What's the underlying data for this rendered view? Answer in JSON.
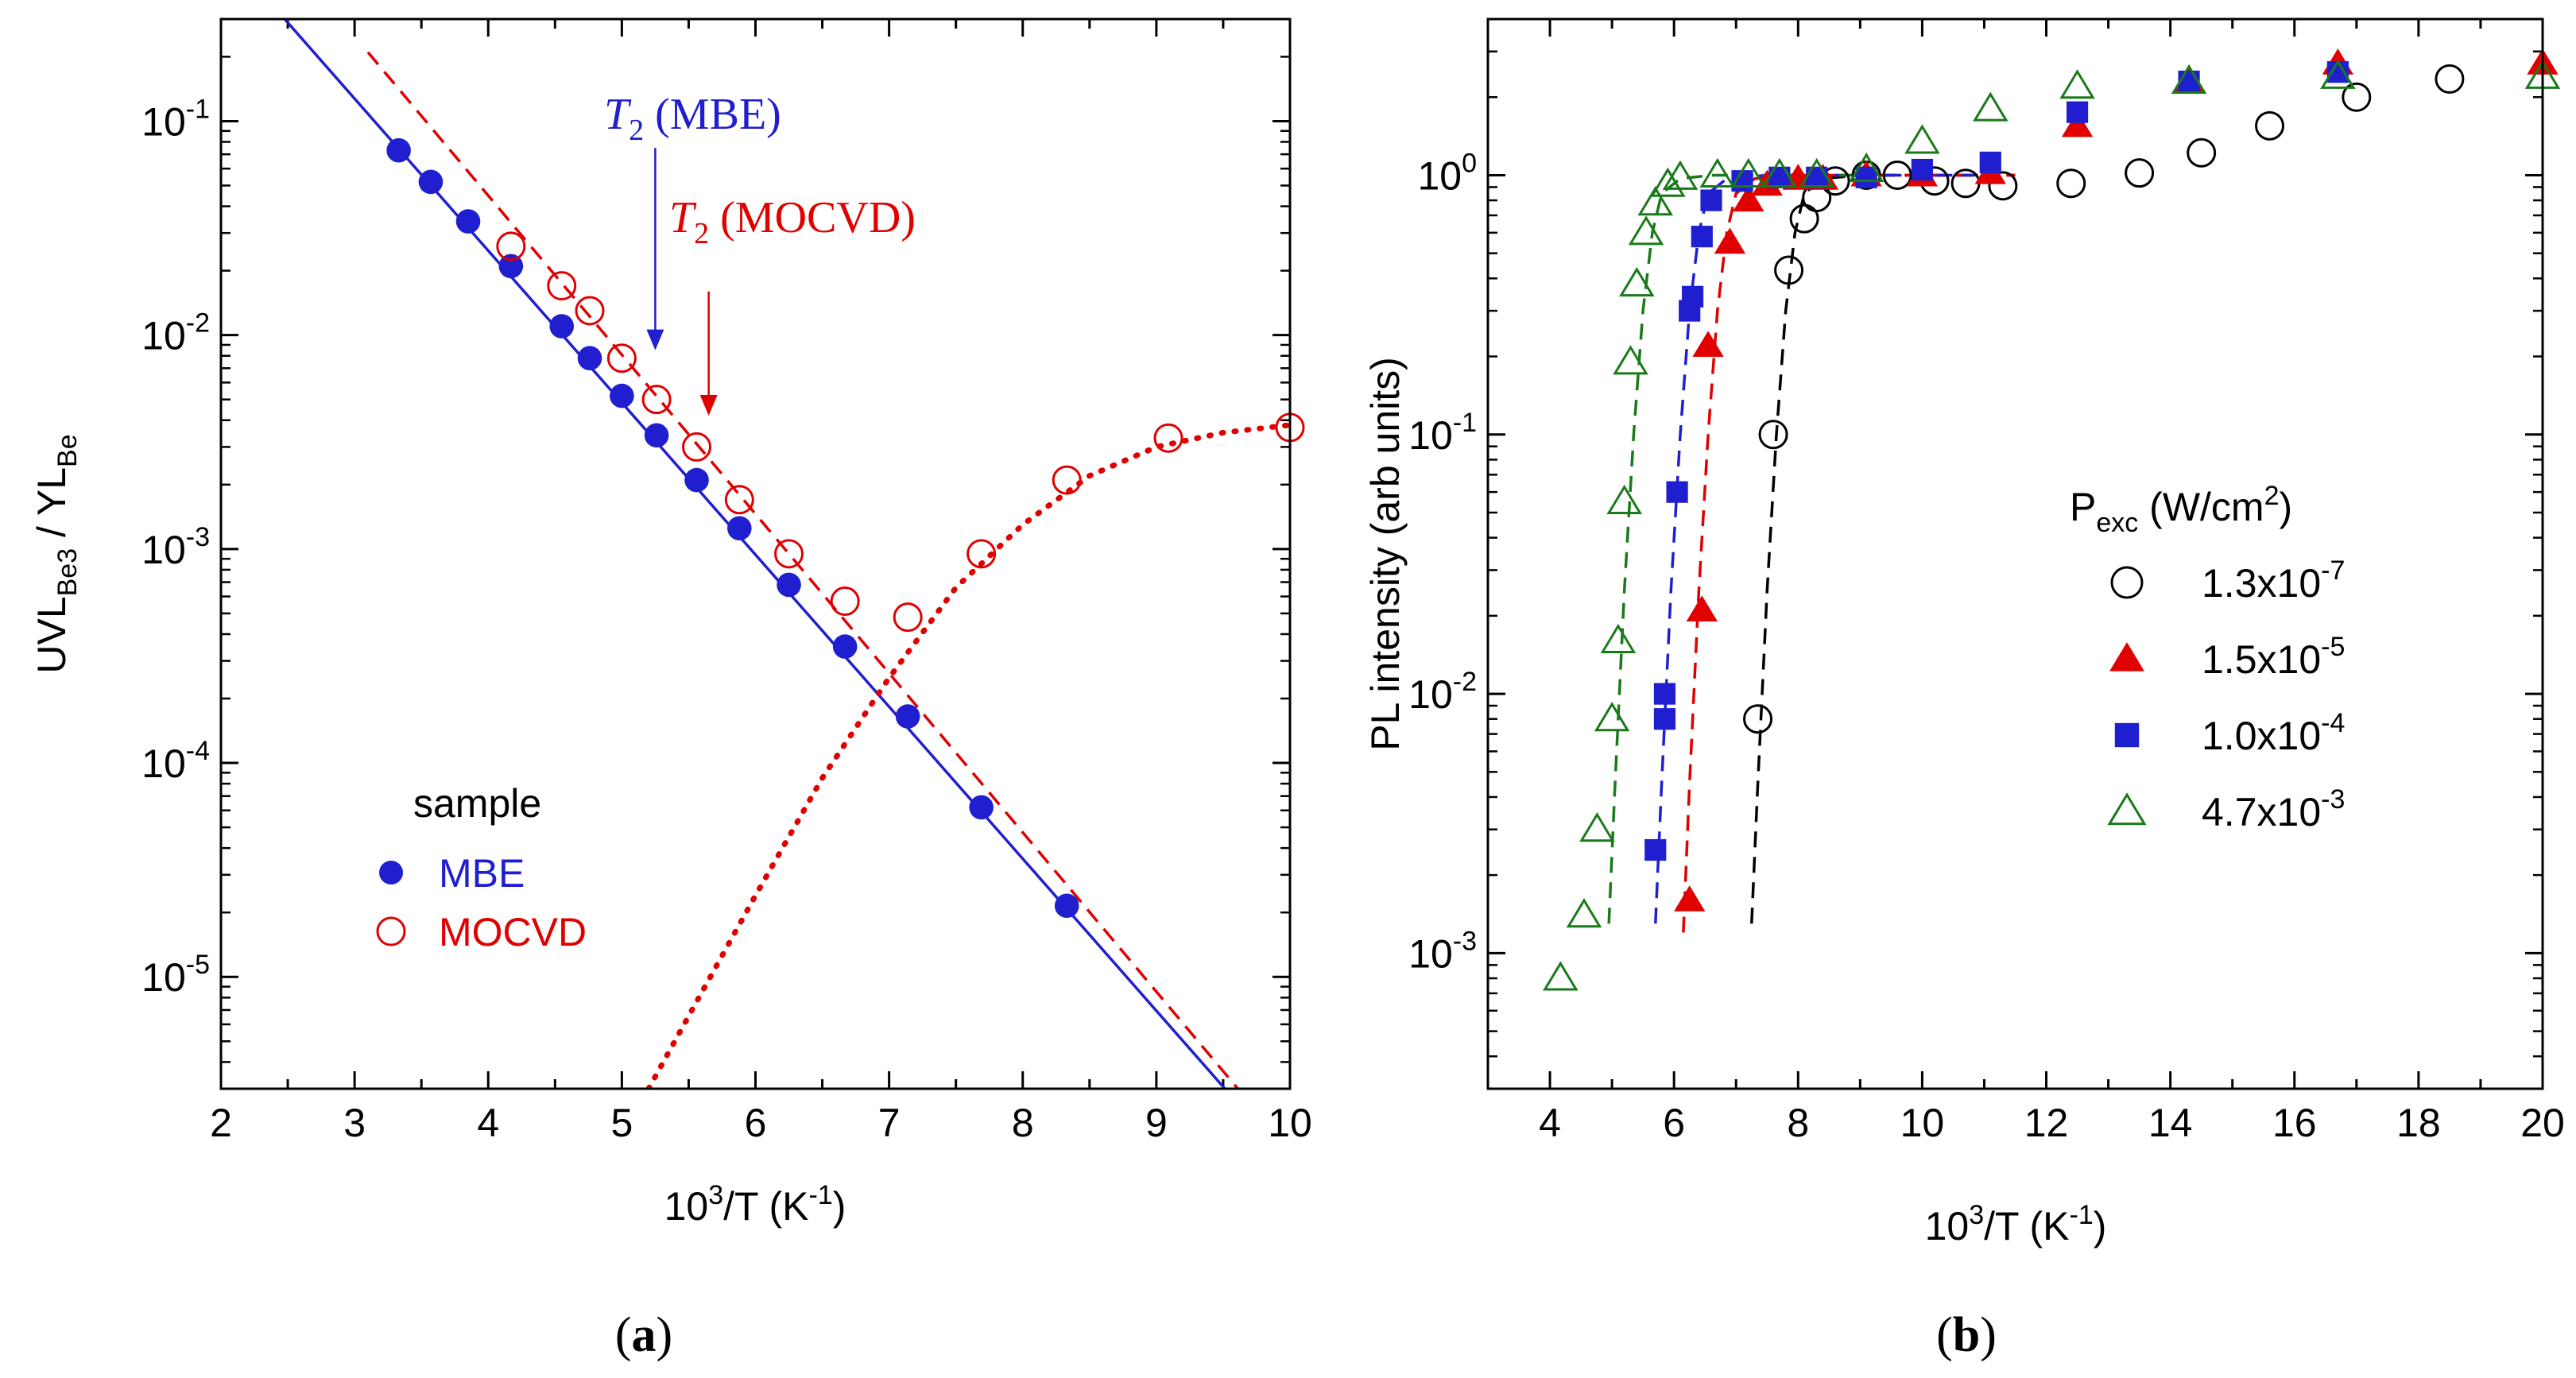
{
  "chart_data": [
    {
      "type": "scatter",
      "panel_label": {
        "open": "(",
        "letter": "a",
        "close": ")"
      },
      "xlabel": {
        "base": "10",
        "sup": "3",
        "rest": "/T (K",
        "sup2": "-1",
        "end": ")"
      },
      "ylabel": {
        "a": "UVL",
        "a_sub": "Be3",
        "mid": " / YL",
        "b_sub": "Be"
      },
      "xlim": [
        2,
        10
      ],
      "ylim": [
        3e-06,
        0.3
      ],
      "yscale": "log",
      "x_ticks": [
        2,
        3,
        4,
        5,
        6,
        7,
        8,
        9,
        10
      ],
      "x_tick_labels": [
        "2",
        "3",
        "4",
        "5",
        "6",
        "7",
        "8",
        "9",
        "10"
      ],
      "y_ticks": [
        {
          "v": 1e-05,
          "exp": "-5"
        },
        {
          "v": 0.0001,
          "exp": "-4"
        },
        {
          "v": 0.001,
          "exp": "-3"
        },
        {
          "v": 0.01,
          "exp": "-2"
        },
        {
          "v": 0.1,
          "exp": "-1"
        }
      ],
      "y_tick_base": "10",
      "legend_title": "sample",
      "series": [
        {
          "name": "MBE",
          "marker": "filled-circle",
          "color": "#1f1fd0",
          "x": [
            3.33,
            3.57,
            3.85,
            4.17,
            4.55,
            4.76,
            5.0,
            5.26,
            5.56,
            5.88,
            6.25,
            6.67,
            7.14,
            7.69,
            8.33
          ],
          "y": [
            0.073,
            0.052,
            0.034,
            0.021,
            0.011,
            0.0078,
            0.0052,
            0.0034,
            0.0021,
            0.00125,
            0.00068,
            0.00035,
            0.000165,
            6.2e-05,
            2.15e-05
          ]
        },
        {
          "name": "MOCVD",
          "marker": "open-circle",
          "color": "#e00000",
          "x": [
            4.17,
            4.55,
            4.76,
            5.0,
            5.26,
            5.56,
            5.88,
            6.25,
            6.67,
            7.14,
            7.69,
            8.33,
            9.09,
            10.0
          ],
          "y": [
            0.026,
            0.017,
            0.013,
            0.0078,
            0.005,
            0.003,
            0.0017,
            0.00095,
            0.00057,
            0.00048,
            0.00095,
            0.0021,
            0.0033,
            0.0037
          ]
        }
      ],
      "fit_lines": [
        {
          "name": "MBE fit",
          "style": "solid",
          "color": "#1f1fd0",
          "x": [
            2.4,
            9.6
          ],
          "y": [
            0.34,
            2.6e-06
          ]
        },
        {
          "name": "MOCVD fit",
          "style": "dashed",
          "color": "#e00000",
          "x": [
            3.1,
            9.65
          ],
          "y": [
            0.21,
            2.8e-06
          ]
        },
        {
          "name": "MOCVD low-T",
          "style": "dotted",
          "color": "#e00000",
          "x": [
            5.2,
            5.6,
            6.0,
            6.5,
            7.0,
            7.5,
            8.0,
            8.5,
            9.0,
            9.5,
            10.0
          ],
          "y": [
            3e-06,
            8.5e-06,
            2.4e-05,
            8.5e-05,
            0.00025,
            0.00066,
            0.0013,
            0.0022,
            0.003,
            0.0035,
            0.0038
          ]
        }
      ],
      "annotations": [
        {
          "sym": "T",
          "sub": "2",
          "text": " (MBE)",
          "color": "#1f1fd0",
          "arrow_x": 5.25,
          "arrow_from": 0.075,
          "arrow_to": 0.0085
        },
        {
          "sym": "T",
          "sub": "2",
          "text": " (MOCVD)",
          "color": "#e00000",
          "arrow_x": 5.65,
          "arrow_from": 0.016,
          "arrow_to": 0.0042
        }
      ]
    },
    {
      "type": "scatter",
      "panel_label": {
        "open": "(",
        "letter": "b",
        "close": ")"
      },
      "xlabel": {
        "base": "10",
        "sup": "3",
        "rest": "/T (K",
        "sup2": "-1",
        "end": ")"
      },
      "ylabel": {
        "text": "PL intensity  (arb units)"
      },
      "xlim": [
        3,
        20
      ],
      "ylim": [
        0.0003,
        4
      ],
      "yscale": "log",
      "x_ticks": [
        4,
        6,
        8,
        10,
        12,
        14,
        16,
        18,
        20
      ],
      "x_tick_labels": [
        "4",
        "6",
        "8",
        "10",
        "12",
        "14",
        "16",
        "18",
        "20"
      ],
      "y_ticks": [
        {
          "v": 0.001,
          "exp": "-3"
        },
        {
          "v": 0.01,
          "exp": "-2"
        },
        {
          "v": 0.1,
          "exp": "-1"
        },
        {
          "v": 1,
          "exp": "0"
        }
      ],
      "y_tick_base": "10",
      "legend_title": {
        "base": "P",
        "sub": "exc",
        "rest": " (W/cm",
        "sup": "2",
        "end": ")"
      },
      "series": [
        {
          "name": "1.3x10-7",
          "label_base": "1.3x10",
          "label_exp": "-7",
          "marker": "open-circle",
          "color": "#000000",
          "x": [
            7.35,
            7.6,
            7.85,
            8.1,
            8.3,
            8.6,
            9.1,
            9.6,
            10.2,
            10.7,
            11.3,
            12.4,
            13.5,
            14.5,
            15.6,
            17.0,
            18.5
          ],
          "y": [
            0.008,
            0.1,
            0.43,
            0.68,
            0.82,
            0.95,
            1.0,
            1.0,
            0.95,
            0.93,
            0.91,
            0.93,
            1.02,
            1.22,
            1.55,
            2.0,
            2.35
          ]
        },
        {
          "name": "1.5x10-5",
          "label_base": "1.5x10",
          "label_exp": "-5",
          "marker": "filled-triangle",
          "color": "#e00000",
          "x": [
            6.25,
            6.45,
            6.55,
            6.9,
            7.2,
            7.5,
            8.0,
            8.4,
            9.1,
            10.0,
            11.1,
            12.5,
            14.3,
            16.7,
            20.0
          ],
          "y": [
            0.0016,
            0.021,
            0.22,
            0.55,
            0.8,
            0.92,
            0.97,
            0.97,
            1.0,
            1.0,
            1.02,
            1.55,
            2.3,
            2.7,
            2.7
          ]
        },
        {
          "name": "1.0x10-4",
          "label_base": "1.0x10",
          "label_exp": "-4",
          "marker": "filled-square",
          "color": "#1f1fd0",
          "x": [
            5.7,
            5.85,
            5.85,
            6.05,
            6.25,
            6.3,
            6.45,
            6.6,
            7.1,
            7.7,
            8.3,
            9.1,
            10.0,
            11.1,
            12.5,
            14.3,
            16.7
          ],
          "y": [
            0.0025,
            0.008,
            0.01,
            0.06,
            0.3,
            0.34,
            0.58,
            0.8,
            0.95,
            0.98,
            0.98,
            0.98,
            1.05,
            1.12,
            1.75,
            2.3,
            2.5
          ]
        },
        {
          "name": "4.7x10-3",
          "label_base": "4.7x10",
          "label_exp": "-3",
          "marker": "open-triangle",
          "color": "#1a7a1a",
          "x": [
            4.17,
            4.55,
            4.76,
            5.0,
            5.1,
            5.2,
            5.3,
            5.4,
            5.55,
            5.7,
            5.9,
            6.1,
            6.7,
            7.2,
            7.7,
            8.3,
            9.1,
            10.0,
            11.1,
            12.5,
            14.3,
            16.7,
            20.0
          ],
          "y": [
            0.0008,
            0.0014,
            0.003,
            0.008,
            0.016,
            0.055,
            0.19,
            0.38,
            0.6,
            0.78,
            0.92,
            0.98,
            1.0,
            1.0,
            1.0,
            1.0,
            1.05,
            1.35,
            1.8,
            2.2,
            2.3,
            2.4,
            2.4
          ]
        }
      ],
      "fit_lines": [
        {
          "name": "fit 1.3x10-7",
          "style": "dashed",
          "color": "#000000",
          "x": [
            7.25,
            7.35,
            7.5,
            7.65,
            7.8,
            7.95,
            8.1,
            8.4,
            9.0,
            11.5
          ],
          "y": [
            0.0013,
            0.0045,
            0.025,
            0.1,
            0.3,
            0.6,
            0.85,
            0.97,
            1.0,
            1.0
          ]
        },
        {
          "name": "fit 1.5x10-5",
          "style": "dashed",
          "color": "#e00000",
          "x": [
            6.15,
            6.25,
            6.4,
            6.55,
            6.7,
            6.85,
            7.0,
            7.3,
            8.0,
            11.5
          ],
          "y": [
            0.0012,
            0.0045,
            0.025,
            0.1,
            0.3,
            0.6,
            0.85,
            0.97,
            1.0,
            1.0
          ]
        },
        {
          "name": "fit 1.0x10-4",
          "style": "dashed",
          "color": "#1f1fd0",
          "x": [
            5.7,
            5.8,
            5.95,
            6.1,
            6.25,
            6.4,
            6.55,
            6.85,
            7.5,
            11.0
          ],
          "y": [
            0.0013,
            0.0045,
            0.025,
            0.1,
            0.3,
            0.6,
            0.85,
            0.97,
            1.0,
            1.0
          ]
        },
        {
          "name": "fit 4.7x10-3",
          "style": "dashed",
          "color": "#1a7a1a",
          "x": [
            4.95,
            5.05,
            5.2,
            5.35,
            5.5,
            5.65,
            5.8,
            6.1,
            6.6,
            9.0
          ],
          "y": [
            0.0013,
            0.0045,
            0.025,
            0.1,
            0.3,
            0.6,
            0.85,
            0.97,
            1.0,
            1.0
          ]
        }
      ]
    }
  ]
}
